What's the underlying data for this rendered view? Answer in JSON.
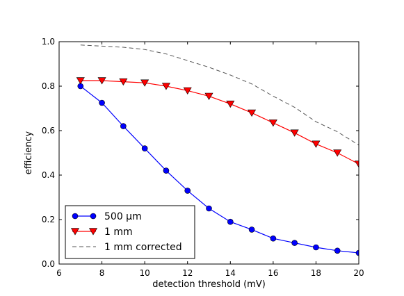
{
  "chart_data": {
    "type": "line",
    "title": "",
    "xlabel": "detection threshold (mV)",
    "ylabel": "efficiency",
    "xlim": [
      6,
      20
    ],
    "ylim": [
      0.0,
      1.0
    ],
    "xticks": [
      6,
      8,
      10,
      12,
      14,
      16,
      18,
      20
    ],
    "yticks": [
      0.0,
      0.2,
      0.4,
      0.6,
      0.8,
      1.0
    ],
    "xtick_labels": [
      "6",
      "8",
      "10",
      "12",
      "14",
      "16",
      "18",
      "20"
    ],
    "ytick_labels": [
      "0.0",
      "0.2",
      "0.4",
      "0.6",
      "0.8",
      "1.0"
    ],
    "grid": false,
    "legend_position": "lower-left",
    "x": [
      7,
      8,
      9,
      10,
      11,
      12,
      13,
      14,
      15,
      16,
      17,
      18,
      19,
      20
    ],
    "series": [
      {
        "name": "500 μm",
        "color": "#0000ff",
        "marker": "circle",
        "linestyle": "solid",
        "values": [
          0.8,
          0.725,
          0.62,
          0.52,
          0.42,
          0.33,
          0.25,
          0.19,
          0.155,
          0.115,
          0.095,
          0.075,
          0.06,
          0.05
        ]
      },
      {
        "name": "1 mm",
        "color": "#ff0000",
        "marker": "triangle-down",
        "linestyle": "solid",
        "values": [
          0.825,
          0.825,
          0.82,
          0.815,
          0.8,
          0.78,
          0.755,
          0.72,
          0.68,
          0.635,
          0.59,
          0.54,
          0.5,
          0.45
        ]
      },
      {
        "name": "1 mm corrected",
        "color": "#555555",
        "marker": "none",
        "linestyle": "dashed",
        "values": [
          0.985,
          0.98,
          0.975,
          0.965,
          0.945,
          0.915,
          0.885,
          0.85,
          0.81,
          0.755,
          0.705,
          0.64,
          0.595,
          0.535
        ]
      }
    ]
  }
}
